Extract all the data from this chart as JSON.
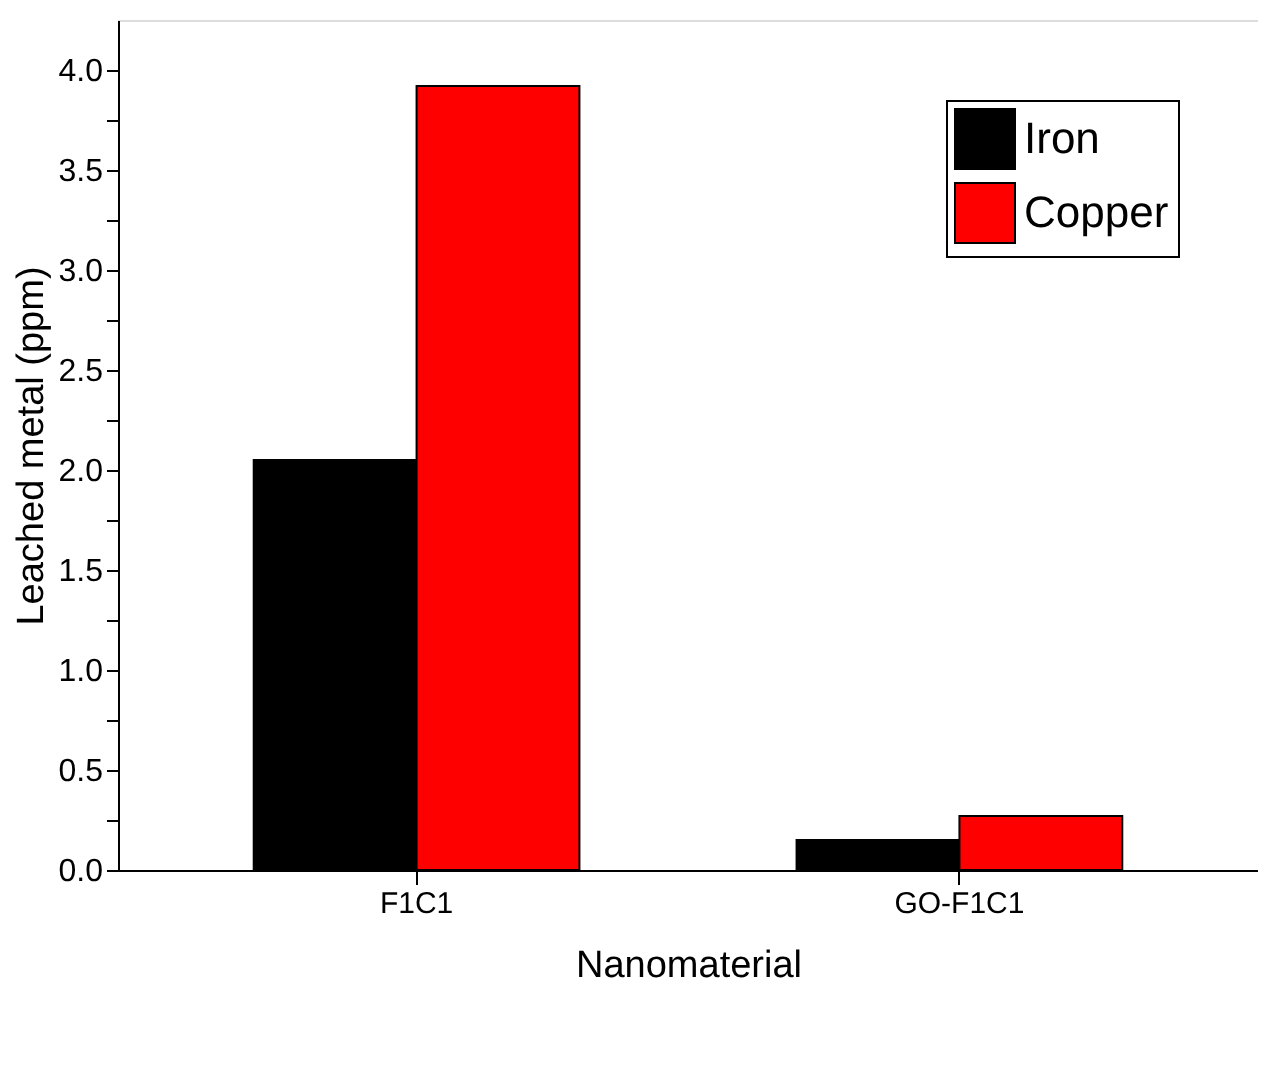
{
  "chart_data": {
    "type": "bar",
    "xlabel": "Nanomaterial",
    "ylabel": "Leached metal (ppm)",
    "categories": [
      "F1C1",
      "GO-F1C1"
    ],
    "series": [
      {
        "name": "Iron",
        "color": "#000000",
        "values": [
          2.05,
          0.15
        ]
      },
      {
        "name": "Copper",
        "color": "#ff0000",
        "values": [
          3.92,
          0.27
        ]
      }
    ],
    "ylim": [
      0,
      4.25
    ],
    "yticks": [
      {
        "value": 0,
        "label": "0.0"
      },
      {
        "value": 0.25,
        "label": null
      },
      {
        "value": 0.5,
        "label": "0.5"
      },
      {
        "value": 0.75,
        "label": null
      },
      {
        "value": 1,
        "label": "1.0"
      },
      {
        "value": 1.25,
        "label": null
      },
      {
        "value": 1.5,
        "label": "1.5"
      },
      {
        "value": 1.75,
        "label": null
      },
      {
        "value": 2,
        "label": "2.0"
      },
      {
        "value": 2.25,
        "label": null
      },
      {
        "value": 2.5,
        "label": "2.5"
      },
      {
        "value": 2.75,
        "label": null
      },
      {
        "value": 3,
        "label": "3.0"
      },
      {
        "value": 3.25,
        "label": null
      },
      {
        "value": 3.5,
        "label": "3.5"
      },
      {
        "value": 3.75,
        "label": null
      },
      {
        "value": 4,
        "label": "4.0"
      }
    ],
    "grid": false,
    "legend": "top right"
  }
}
